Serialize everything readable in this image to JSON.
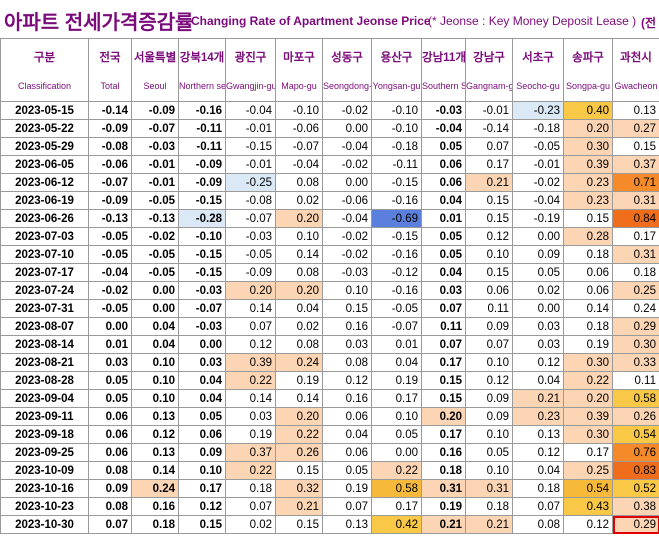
{
  "title": {
    "korean": "아파트 전세가격증감률",
    "english": "Changing Rate of Apartment Jeonse Price",
    "note": "(* Jeonse : Key Money Deposit Lease )",
    "unit": "(전"
  },
  "columns": [
    {
      "ko": "구분",
      "en": "Classification"
    },
    {
      "ko": "전국",
      "en": "Total"
    },
    {
      "ko": "서울특별",
      "en": "Seoul"
    },
    {
      "ko": "강북14개",
      "en": "Northern seoul"
    },
    {
      "ko": "광진구",
      "en": "Gwangjin-gu"
    },
    {
      "ko": "마포구",
      "en": "Mapo-gu"
    },
    {
      "ko": "성동구",
      "en": "Seongdong-gu"
    },
    {
      "ko": "용산구",
      "en": "Yongsan-gu"
    },
    {
      "ko": "강남11개",
      "en": "Southern Seoul"
    },
    {
      "ko": "강남구",
      "en": "Gangnam-gu"
    },
    {
      "ko": "서초구",
      "en": "Seocho-gu"
    },
    {
      "ko": "송파구",
      "en": "Songpa-gu"
    },
    {
      "ko": "과천시",
      "en": "Gwacheon"
    }
  ],
  "colors": {
    "heat_neg_light": "#dbe9f7",
    "heat_neg_strong": "#5b7fdc",
    "heat_pos_1": "#fcd5b5",
    "heat_pos_2": "#fbbf8d",
    "heat_pos_3": "#f8c846",
    "heat_pos_4": "#f7b93a",
    "heat_pos_5": "#f58a2a",
    "heat_pos_6": "#f06d1b",
    "highlight_border": "#e00000",
    "title": "#7b0a7b"
  },
  "rows": [
    {
      "date": "2023-05-15",
      "v": [
        "-0.14",
        "-0.09",
        "-0.16",
        "-0.04",
        "-0.10",
        "-0.02",
        "-0.10",
        "-0.03",
        "-0.01",
        "-0.23",
        "0.40",
        "0.13"
      ]
    },
    {
      "date": "2023-05-22",
      "v": [
        "-0.09",
        "-0.07",
        "-0.11",
        "-0.01",
        "-0.06",
        "0.00",
        "-0.10",
        "-0.04",
        "-0.14",
        "-0.18",
        "0.20",
        "0.27"
      ]
    },
    {
      "date": "2023-05-29",
      "v": [
        "-0.08",
        "-0.03",
        "-0.11",
        "-0.15",
        "-0.07",
        "-0.04",
        "-0.18",
        "0.05",
        "0.07",
        "-0.05",
        "0.30",
        "0.15"
      ]
    },
    {
      "date": "2023-06-05",
      "v": [
        "-0.06",
        "-0.01",
        "-0.09",
        "-0.01",
        "-0.04",
        "-0.02",
        "-0.11",
        "0.06",
        "0.17",
        "-0.01",
        "0.39",
        "0.37"
      ]
    },
    {
      "date": "2023-06-12",
      "v": [
        "-0.07",
        "-0.01",
        "-0.09",
        "-0.25",
        "0.08",
        "0.00",
        "-0.15",
        "0.06",
        "0.21",
        "-0.02",
        "0.23",
        "0.71"
      ]
    },
    {
      "date": "2023-06-19",
      "v": [
        "-0.09",
        "-0.05",
        "-0.15",
        "-0.08",
        "0.02",
        "-0.06",
        "-0.16",
        "0.04",
        "0.15",
        "-0.04",
        "0.23",
        "0.31"
      ]
    },
    {
      "date": "2023-06-26",
      "v": [
        "-0.13",
        "-0.13",
        "-0.28",
        "-0.07",
        "0.20",
        "-0.04",
        "-0.69",
        "0.01",
        "0.15",
        "-0.19",
        "0.15",
        "0.84"
      ]
    },
    {
      "date": "2023-07-03",
      "v": [
        "-0.05",
        "-0.02",
        "-0.10",
        "-0.03",
        "0.10",
        "-0.02",
        "-0.15",
        "0.05",
        "0.12",
        "0.00",
        "0.28",
        "0.17"
      ]
    },
    {
      "date": "2023-07-10",
      "v": [
        "-0.05",
        "-0.05",
        "-0.15",
        "-0.05",
        "0.14",
        "-0.02",
        "-0.16",
        "0.05",
        "0.10",
        "0.09",
        "0.18",
        "0.31"
      ]
    },
    {
      "date": "2023-07-17",
      "v": [
        "-0.04",
        "-0.05",
        "-0.15",
        "-0.09",
        "0.08",
        "-0.03",
        "-0.12",
        "0.04",
        "0.15",
        "0.05",
        "0.06",
        "0.18"
      ]
    },
    {
      "date": "2023-07-24",
      "v": [
        "-0.02",
        "0.00",
        "-0.03",
        "0.20",
        "0.20",
        "0.10",
        "-0.16",
        "0.03",
        "0.06",
        "0.02",
        "0.06",
        "0.25"
      ]
    },
    {
      "date": "2023-07-31",
      "v": [
        "-0.05",
        "0.00",
        "-0.07",
        "0.14",
        "0.04",
        "0.15",
        "-0.05",
        "0.07",
        "0.11",
        "0.00",
        "0.14",
        "0.24"
      ]
    },
    {
      "date": "2023-08-07",
      "v": [
        "0.00",
        "0.04",
        "-0.03",
        "0.07",
        "0.02",
        "0.16",
        "-0.07",
        "0.11",
        "0.09",
        "0.03",
        "0.18",
        "0.29"
      ]
    },
    {
      "date": "2023-08-14",
      "v": [
        "0.01",
        "0.04",
        "0.00",
        "0.12",
        "0.08",
        "0.03",
        "0.01",
        "0.07",
        "0.07",
        "0.03",
        "0.19",
        "0.30"
      ]
    },
    {
      "date": "2023-08-21",
      "v": [
        "0.03",
        "0.10",
        "0.03",
        "0.39",
        "0.24",
        "0.08",
        "0.04",
        "0.17",
        "0.10",
        "0.12",
        "0.30",
        "0.33"
      ]
    },
    {
      "date": "2023-08-28",
      "v": [
        "0.05",
        "0.10",
        "0.04",
        "0.22",
        "0.19",
        "0.12",
        "0.19",
        "0.15",
        "0.12",
        "0.04",
        "0.22",
        "0.11"
      ]
    },
    {
      "date": "2023-09-04",
      "v": [
        "0.05",
        "0.10",
        "0.04",
        "0.14",
        "0.14",
        "0.16",
        "0.17",
        "0.15",
        "0.09",
        "0.21",
        "0.20",
        "0.58"
      ]
    },
    {
      "date": "2023-09-11",
      "v": [
        "0.06",
        "0.13",
        "0.05",
        "0.03",
        "0.20",
        "0.06",
        "0.10",
        "0.20",
        "0.09",
        "0.23",
        "0.39",
        "0.26"
      ]
    },
    {
      "date": "2023-09-18",
      "v": [
        "0.06",
        "0.12",
        "0.06",
        "0.19",
        "0.22",
        "0.04",
        "0.05",
        "0.17",
        "0.10",
        "0.13",
        "0.30",
        "0.54"
      ]
    },
    {
      "date": "2023-09-25",
      "v": [
        "0.06",
        "0.13",
        "0.09",
        "0.37",
        "0.26",
        "0.06",
        "0.00",
        "0.16",
        "0.05",
        "0.12",
        "0.17",
        "0.76"
      ]
    },
    {
      "date": "2023-10-09",
      "v": [
        "0.08",
        "0.14",
        "0.10",
        "0.22",
        "0.15",
        "0.05",
        "0.22",
        "0.18",
        "0.10",
        "0.04",
        "0.25",
        "0.83"
      ]
    },
    {
      "date": "2023-10-16",
      "v": [
        "0.09",
        "0.24",
        "0.17",
        "0.18",
        "0.32",
        "0.19",
        "0.58",
        "0.31",
        "0.31",
        "0.18",
        "0.54",
        "0.52"
      ]
    },
    {
      "date": "2023-10-23",
      "v": [
        "0.08",
        "0.16",
        "0.12",
        "0.07",
        "0.21",
        "0.07",
        "0.17",
        "0.19",
        "0.18",
        "0.07",
        "0.43",
        "0.38"
      ]
    },
    {
      "date": "2023-10-30",
      "v": [
        "0.07",
        "0.18",
        "0.15",
        "0.02",
        "0.15",
        "0.13",
        "0.42",
        "0.21",
        "0.21",
        "0.08",
        "0.12",
        "0.29"
      ]
    }
  ]
}
